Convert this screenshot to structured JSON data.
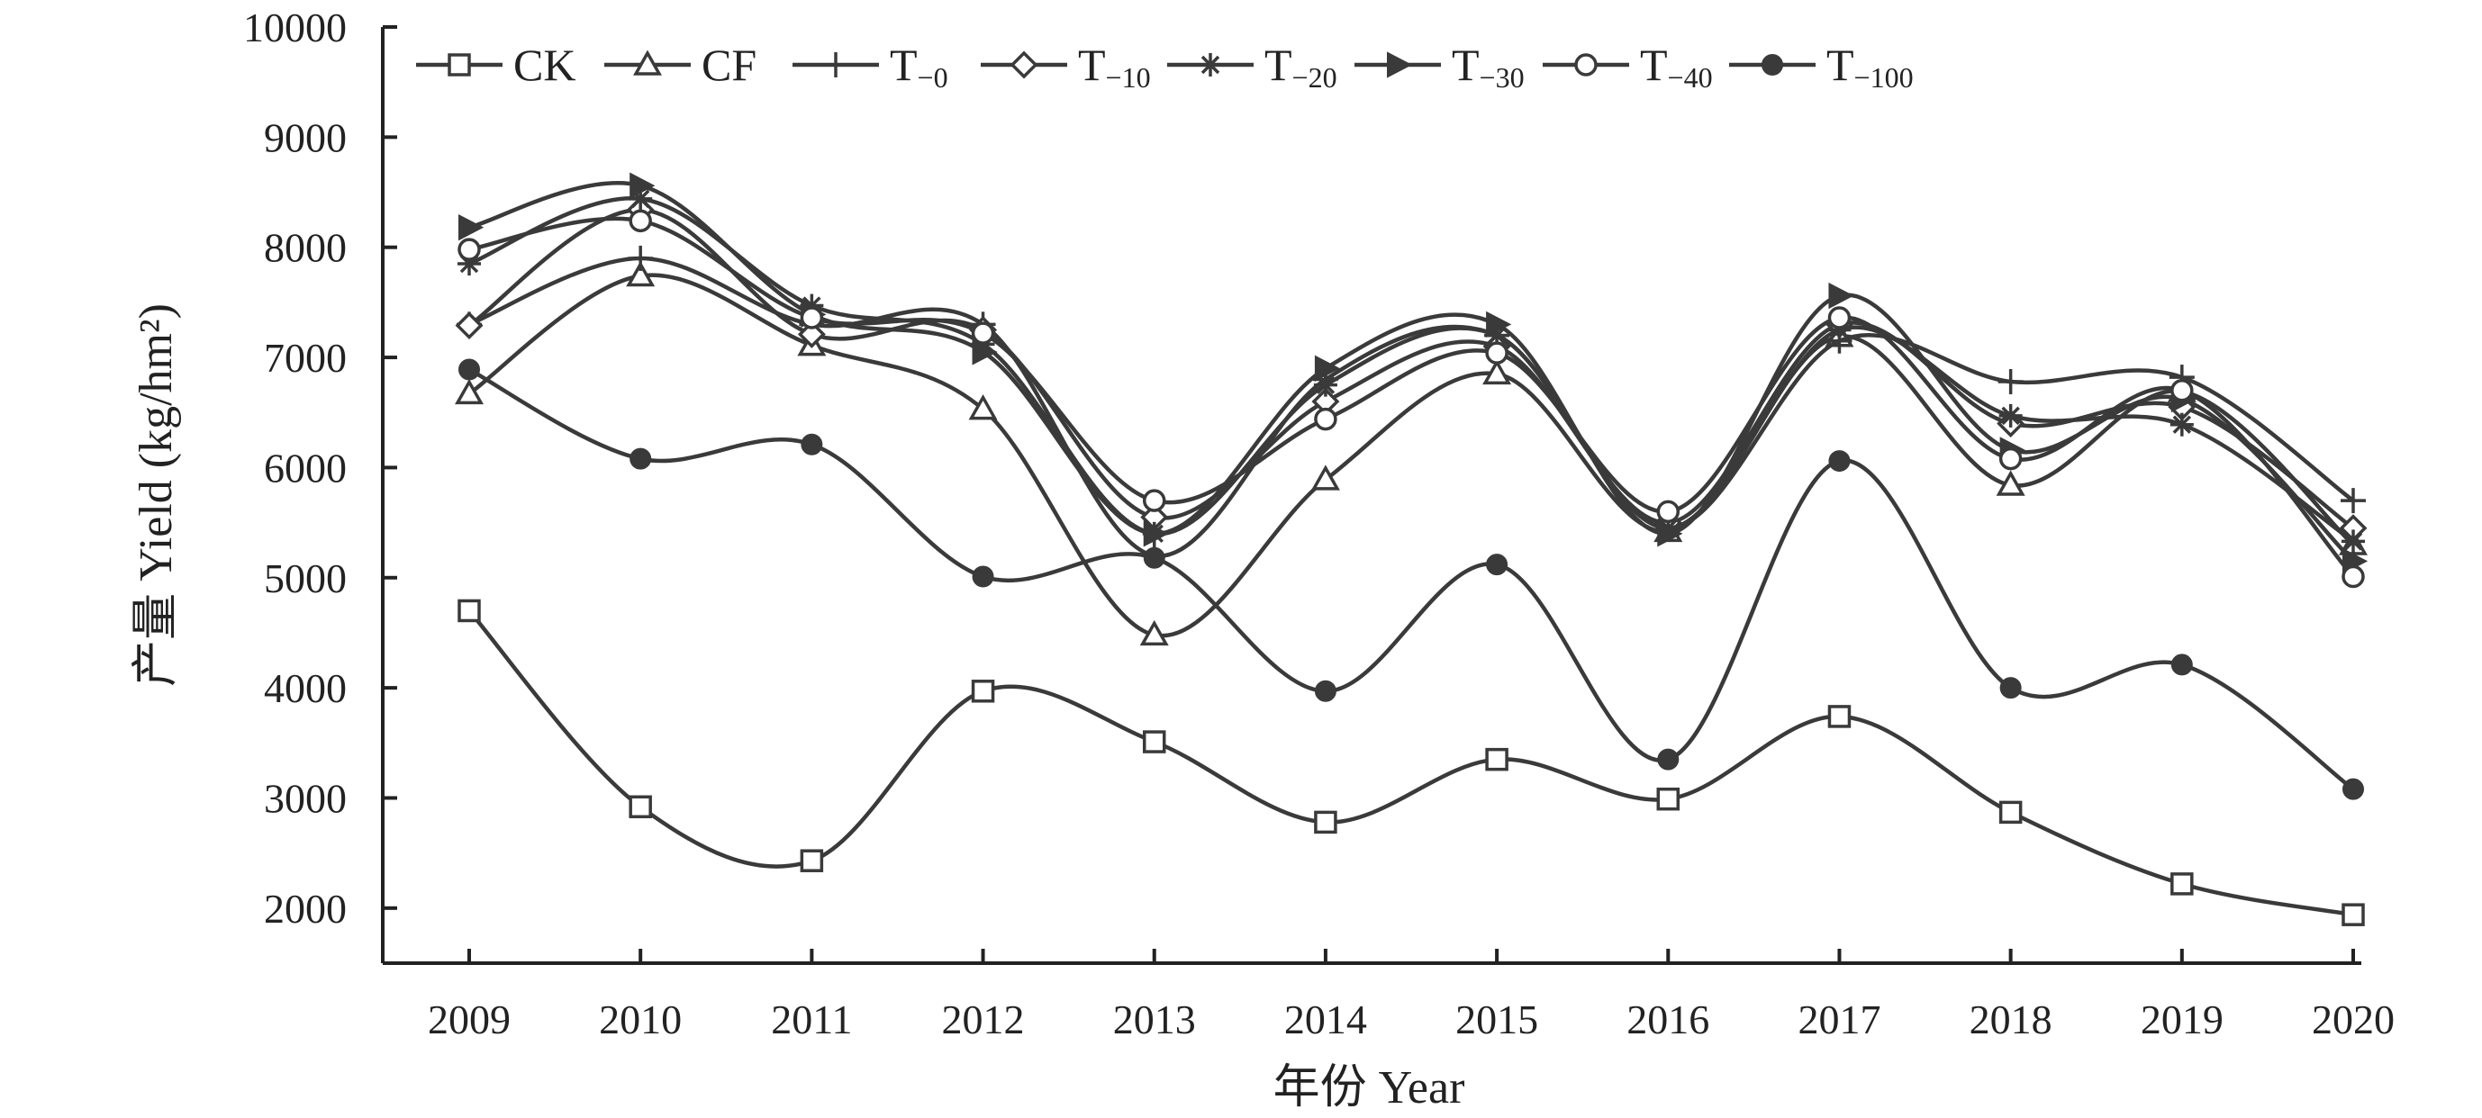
{
  "chart_data": {
    "type": "line",
    "x": [
      2009,
      2010,
      2011,
      2012,
      2013,
      2014,
      2015,
      2016,
      2017,
      2018,
      2019,
      2020
    ],
    "xlabel": "年份 Year",
    "ylabel": "产量 Yield (kg/hm²)",
    "ylim": [
      1500,
      10000
    ],
    "yticks": [
      2000,
      3000,
      4000,
      5000,
      6000,
      7000,
      8000,
      9000,
      10000
    ],
    "smooth": true,
    "grid": false,
    "legend_position": "top-left",
    "line_color": "#3a3a3a",
    "series": [
      {
        "name": "CK",
        "name_main": "CK",
        "name_sub": "",
        "marker": "square-open",
        "values": [
          4700,
          2920,
          2430,
          3970,
          3510,
          2780,
          3350,
          2990,
          3740,
          2870,
          2220,
          1940
        ]
      },
      {
        "name": "CF",
        "name_main": "CF",
        "name_sub": "",
        "marker": "triangle-open",
        "values": [
          6670,
          7740,
          7110,
          6530,
          4480,
          5890,
          6850,
          5420,
          7190,
          5840,
          6690,
          5300
        ]
      },
      {
        "name": "T−0",
        "name_main": "T",
        "name_sub": "−0",
        "marker": "plus",
        "values": [
          7300,
          7900,
          7300,
          7300,
          5200,
          6800,
          7200,
          5450,
          7150,
          6780,
          6820,
          5700
        ]
      },
      {
        "name": "T−10",
        "name_main": "T",
        "name_sub": "−10",
        "marker": "diamond-open",
        "values": [
          7290,
          8340,
          7210,
          7250,
          5550,
          6600,
          7100,
          5500,
          7300,
          6400,
          6550,
          5450
        ]
      },
      {
        "name": "T−20",
        "name_main": "T",
        "name_sub": "−20",
        "marker": "asterisk",
        "values": [
          7850,
          8440,
          7470,
          7120,
          5400,
          6750,
          7200,
          5450,
          7250,
          6470,
          6390,
          5330
        ]
      },
      {
        "name": "T−30",
        "name_main": "T",
        "name_sub": "−30",
        "marker": "triangle-right-filled",
        "values": [
          8180,
          8560,
          7390,
          7050,
          5400,
          6900,
          7300,
          5400,
          7560,
          6160,
          6620,
          5150
        ]
      },
      {
        "name": "T−40",
        "name_main": "T",
        "name_sub": "−40",
        "marker": "circle-open",
        "values": [
          7980,
          8240,
          7360,
          7220,
          5700,
          6440,
          7040,
          5600,
          7360,
          6080,
          6700,
          5010
        ]
      },
      {
        "name": "T−100",
        "name_main": "T",
        "name_sub": "−100",
        "marker": "circle-filled",
        "values": [
          6890,
          6080,
          6210,
          5010,
          5180,
          3970,
          5120,
          3350,
          6060,
          4000,
          4210,
          3080
        ]
      }
    ]
  }
}
